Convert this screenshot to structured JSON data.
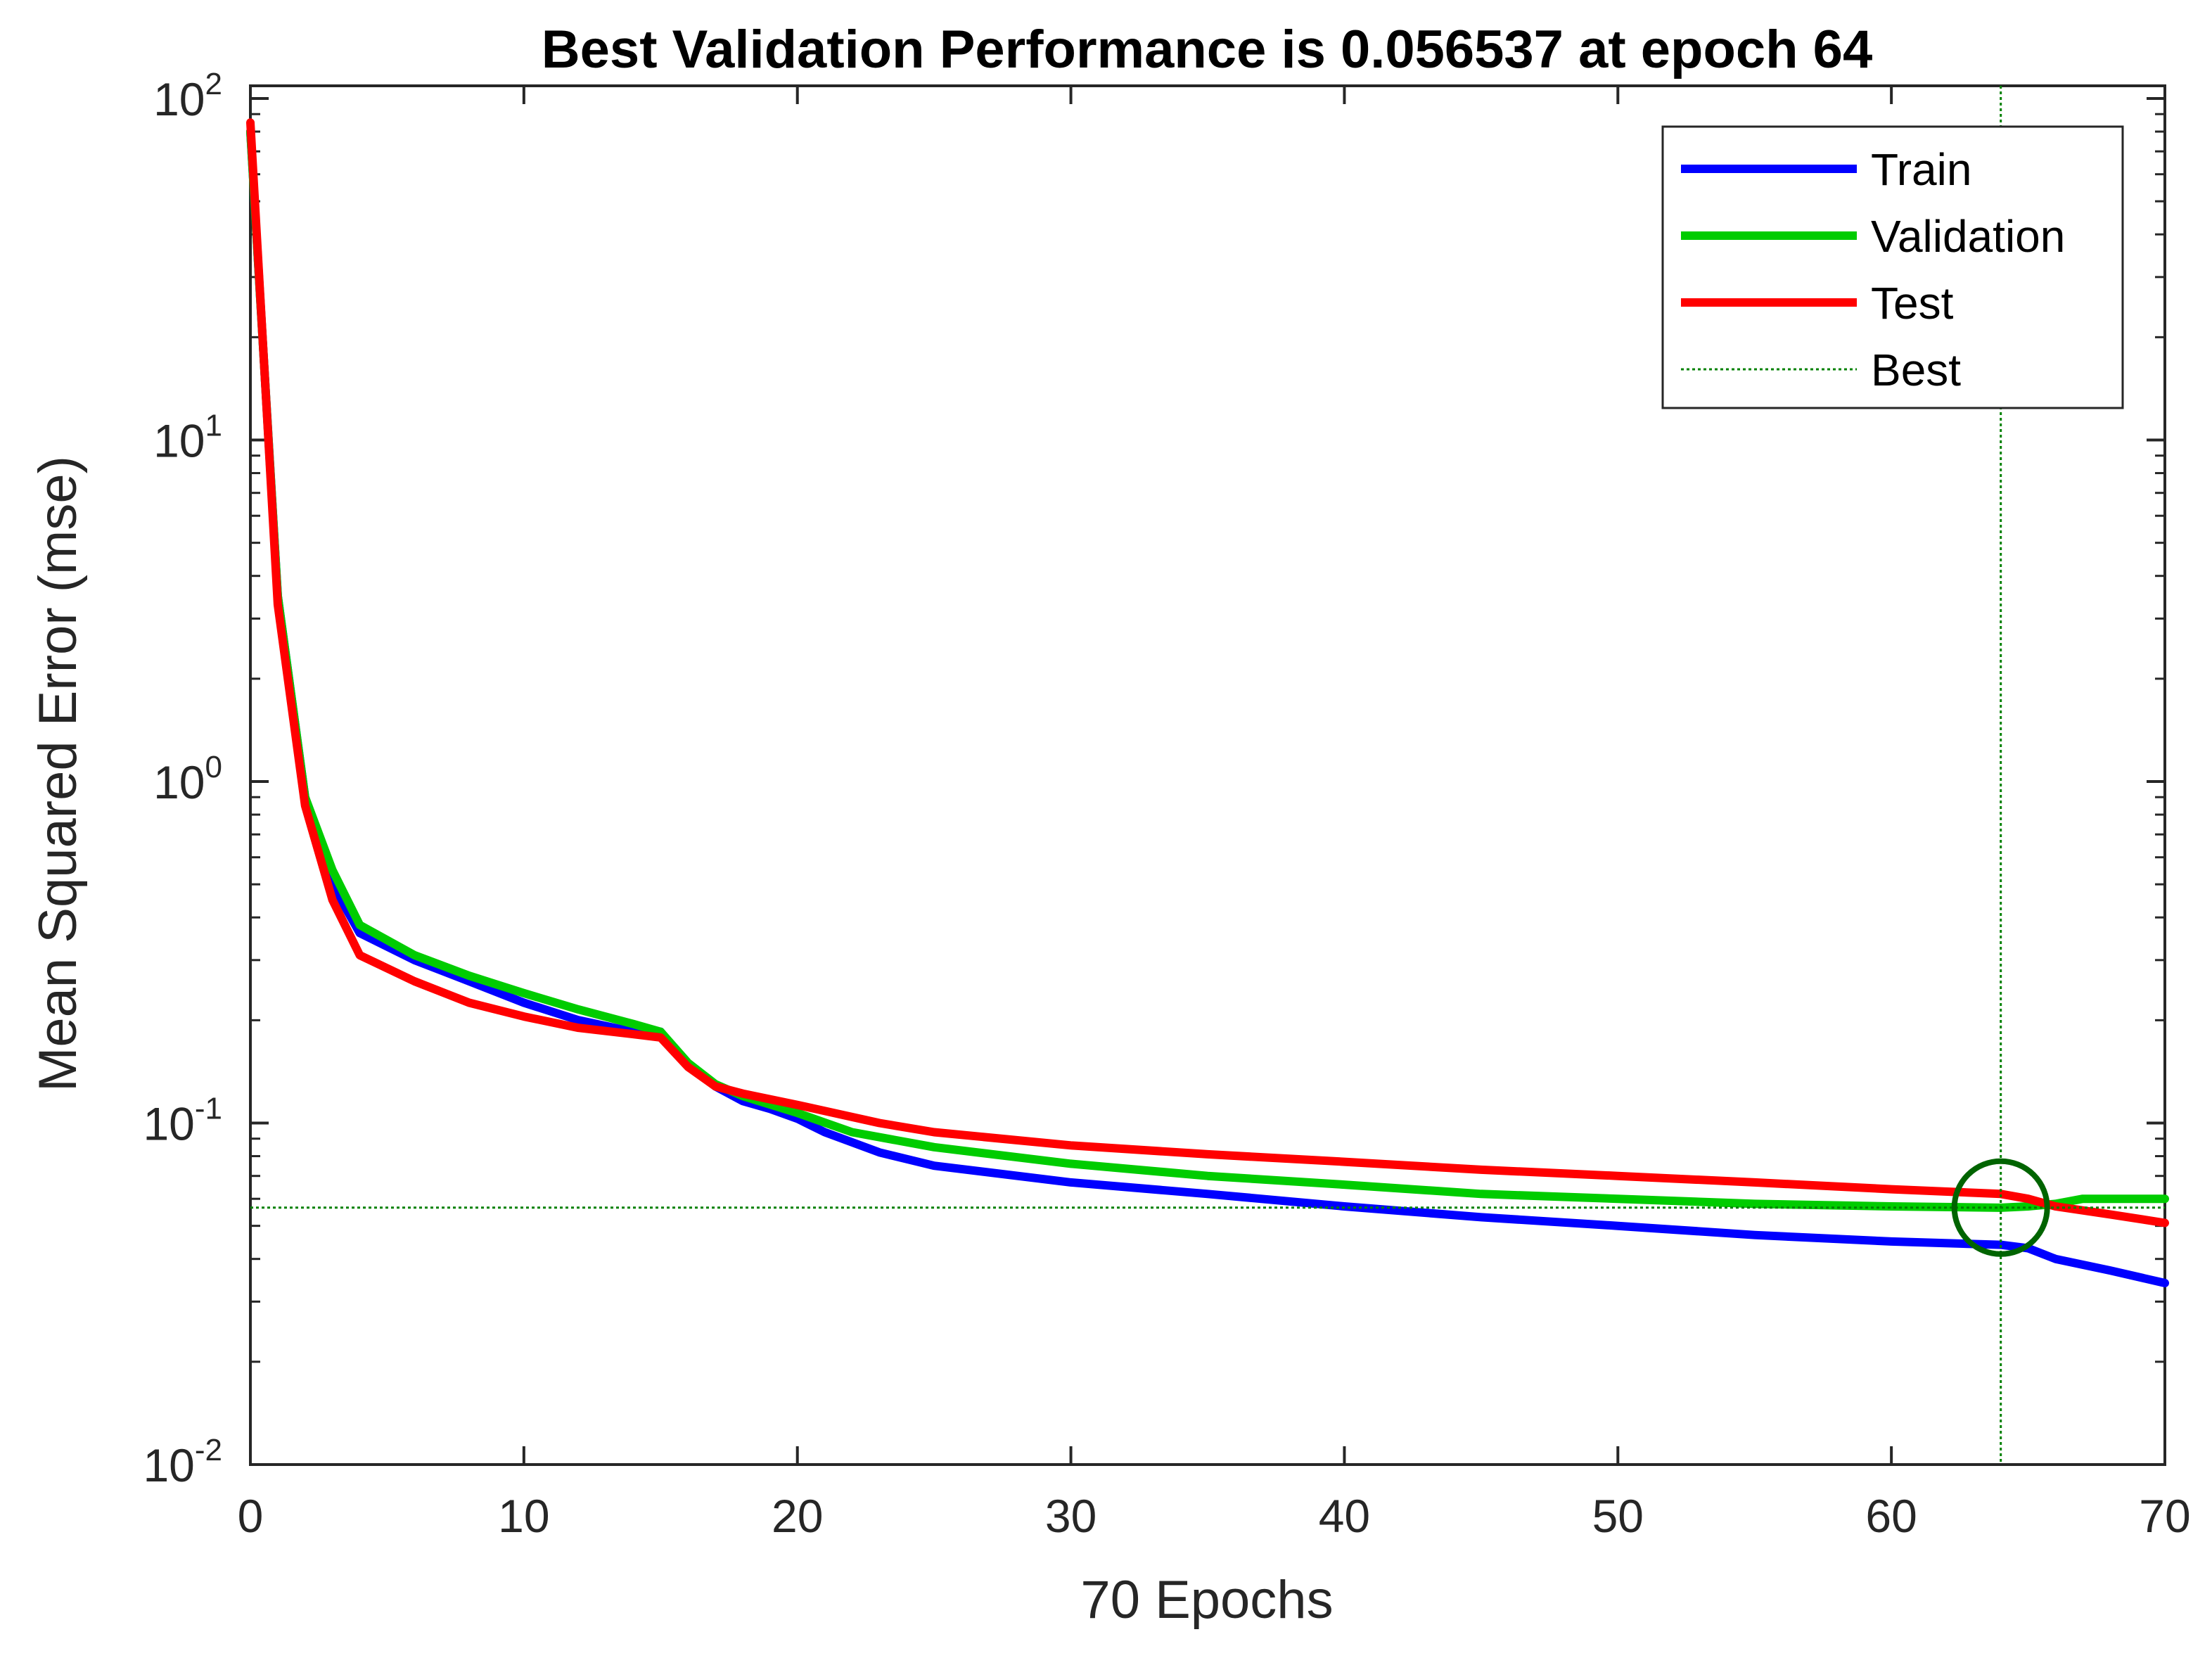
{
  "chart_data": {
    "type": "line",
    "title": "Best Validation Performance is 0.056537 at epoch 64",
    "xlabel": "70 Epochs",
    "ylabel": "Mean Squared Error  (mse)",
    "yscale": "log",
    "xlim": [
      0,
      70
    ],
    "ylim": [
      0.01,
      100
    ],
    "x_ticks": [
      0,
      10,
      20,
      30,
      40,
      50,
      60,
      70
    ],
    "x_tick_labels": [
      "0",
      "10",
      "20",
      "30",
      "40",
      "50",
      "60",
      "70"
    ],
    "y_ticks": [
      {
        "value": 100,
        "base": "10",
        "exp": "2"
      },
      {
        "value": 10,
        "base": "10",
        "exp": "1"
      },
      {
        "value": 1,
        "base": "10",
        "exp": "0"
      },
      {
        "value": 0.1,
        "base": "10",
        "exp": "-1"
      },
      {
        "value": 0.01,
        "base": "10",
        "exp": "-2"
      }
    ],
    "series": [
      {
        "name": "Train",
        "color": "#0000ff",
        "x": [
          0,
          1,
          2,
          3,
          4,
          6,
          8,
          10,
          12,
          14,
          15,
          16,
          17,
          18,
          19,
          20,
          21,
          23,
          25,
          30,
          35,
          40,
          45,
          50,
          55,
          60,
          64,
          65,
          66,
          68,
          70
        ],
        "y": [
          80,
          3.5,
          0.9,
          0.5,
          0.36,
          0.3,
          0.26,
          0.225,
          0.2,
          0.185,
          0.185,
          0.148,
          0.128,
          0.116,
          0.11,
          0.103,
          0.094,
          0.082,
          0.075,
          0.067,
          0.062,
          0.057,
          0.053,
          0.05,
          0.047,
          0.045,
          0.044,
          0.043,
          0.04,
          0.037,
          0.034
        ]
      },
      {
        "name": "Validation",
        "color": "#00cc00",
        "x": [
          0,
          1,
          2,
          3,
          4,
          6,
          8,
          10,
          12,
          14,
          15,
          16,
          17,
          18,
          20,
          22,
          25,
          30,
          35,
          40,
          45,
          50,
          55,
          60,
          64,
          65,
          66,
          67,
          70
        ],
        "y": [
          80,
          3.5,
          0.9,
          0.55,
          0.38,
          0.31,
          0.27,
          0.24,
          0.215,
          0.195,
          0.185,
          0.15,
          0.13,
          0.12,
          0.107,
          0.094,
          0.085,
          0.076,
          0.07,
          0.066,
          0.062,
          0.06,
          0.058,
          0.057,
          0.0565,
          0.057,
          0.058,
          0.06,
          0.06
        ]
      },
      {
        "name": "Test",
        "color": "#ff0000",
        "x": [
          0,
          1,
          2,
          3,
          4,
          6,
          8,
          10,
          12,
          14,
          15,
          16,
          17,
          18,
          20,
          23,
          25,
          30,
          35,
          40,
          45,
          50,
          55,
          60,
          64,
          65,
          66,
          68,
          70
        ],
        "y": [
          85,
          3.3,
          0.85,
          0.45,
          0.31,
          0.26,
          0.225,
          0.205,
          0.19,
          0.182,
          0.178,
          0.146,
          0.128,
          0.122,
          0.113,
          0.1,
          0.094,
          0.086,
          0.081,
          0.077,
          0.073,
          0.07,
          0.067,
          0.064,
          0.062,
          0.06,
          0.057,
          0.054,
          0.051
        ]
      }
    ],
    "best": {
      "name": "Best",
      "epoch": 64,
      "value": 0.056537,
      "color": "#008000"
    },
    "legend": {
      "position": "top-right",
      "entries": [
        "Train",
        "Validation",
        "Test",
        "Best"
      ]
    },
    "grid": false
  }
}
